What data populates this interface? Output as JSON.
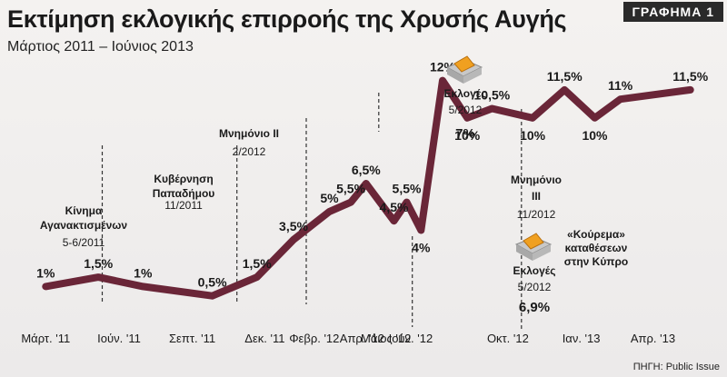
{
  "header": {
    "title": "Εκτίμηση εκλογικής επιρροής της Χρυσής Αυγής",
    "subtitle": "Μάρτιος 2011 – Ιούνιος 2013",
    "badge": "ΓΡΑΦΗΜΑ 1"
  },
  "source": "ΠΗΓΗ: Public Issue",
  "colors": {
    "line": "#6a2638",
    "background": "#efeded",
    "text": "#1a1a1a",
    "ballot_box": "#f0a020"
  },
  "chart_data": {
    "type": "line",
    "title": "Εκτίμηση εκλογικής επιρροής της Χρυσής Αυγής",
    "subtitle": "Μάρτιος 2011 – Ιούνιος 2013",
    "ylabel": "",
    "xlabel": "",
    "ylim": [
      0,
      13
    ],
    "grid": false,
    "x_ticks": [
      "Μάρτ. '11",
      "Ιούν. '11",
      "Σεπτ. '11",
      "Δεκ. '11",
      "Φεβρ. '12",
      "Απρ. '12",
      "Μάιος '12",
      "Ιούν. '12",
      "Οκτ. '12",
      "Ιαν. '13",
      "Απρ. '13"
    ],
    "x_tick_at": [
      "2011-03",
      "2011-06",
      "2011-09",
      "2011-12",
      "2012-02",
      "2012-04",
      "2012-05",
      "2012-06",
      "2012-10",
      "2013-01",
      "2013-04"
    ],
    "series": [
      {
        "points": [
          {
            "x": "2011-03-15",
            "y": 1,
            "label": "1%"
          },
          {
            "x": "2011-05-20",
            "y": 1.5,
            "label": "1,5%"
          },
          {
            "x": "2011-07-15",
            "y": 1,
            "label": "1%"
          },
          {
            "x": "2011-10-10",
            "y": 0.5,
            "label": "0,5%"
          },
          {
            "x": "2011-12-05",
            "y": 1.5,
            "label": "1,5%"
          },
          {
            "x": "2012-01-20",
            "y": 3.5,
            "label": "3,5%"
          },
          {
            "x": "2012-03-05",
            "y": 5,
            "label": "5%"
          },
          {
            "x": "2012-04-01",
            "y": 5.5,
            "label": "5,5%"
          },
          {
            "x": "2012-04-20",
            "y": 6.5,
            "label": "6,5%"
          },
          {
            "x": "2012-05-25",
            "y": 4.5,
            "label": "4,5%"
          },
          {
            "x": "2012-06-10",
            "y": 5.5,
            "label": "5,5%"
          },
          {
            "x": "2012-06-28",
            "y": 4,
            "label": "4%"
          },
          {
            "x": "2012-07-25",
            "y": 12,
            "label": "12%"
          },
          {
            "x": "2012-08-25",
            "y": 10,
            "label": "10%"
          },
          {
            "x": "2012-09-25",
            "y": 10.5,
            "label": "10,5%"
          },
          {
            "x": "2012-11-15",
            "y": 10,
            "label": "10%"
          },
          {
            "x": "2012-12-25",
            "y": 11.5,
            "label": "11,5%"
          },
          {
            "x": "2013-02-01",
            "y": 10,
            "label": "10%"
          },
          {
            "x": "2013-03-05",
            "y": 11,
            "label": "11%"
          },
          {
            "x": "2013-06-01",
            "y": 11.5,
            "label": "11,5%"
          }
        ]
      }
    ],
    "annotations": [
      {
        "text": "Κίνημα Αγανακτισμένων",
        "date": "5-6/2011"
      },
      {
        "text": "Κυβέρνηση Παπαδήμου",
        "date": "11/2011"
      },
      {
        "text": "Μνημόνιο ΙΙ",
        "date": "2/2012"
      },
      {
        "text": "Εκλογές",
        "date": "5/2012",
        "value_label": "7%"
      },
      {
        "text": "Μνημόνιο ΙΙΙ",
        "date": "11/2012"
      },
      {
        "text": "Εκλογές",
        "date": "5/2012",
        "value_label": "6,9%"
      },
      {
        "text": "«Κούρεμα» καταθέσεων στην Κύπρο",
        "date": ""
      }
    ]
  }
}
